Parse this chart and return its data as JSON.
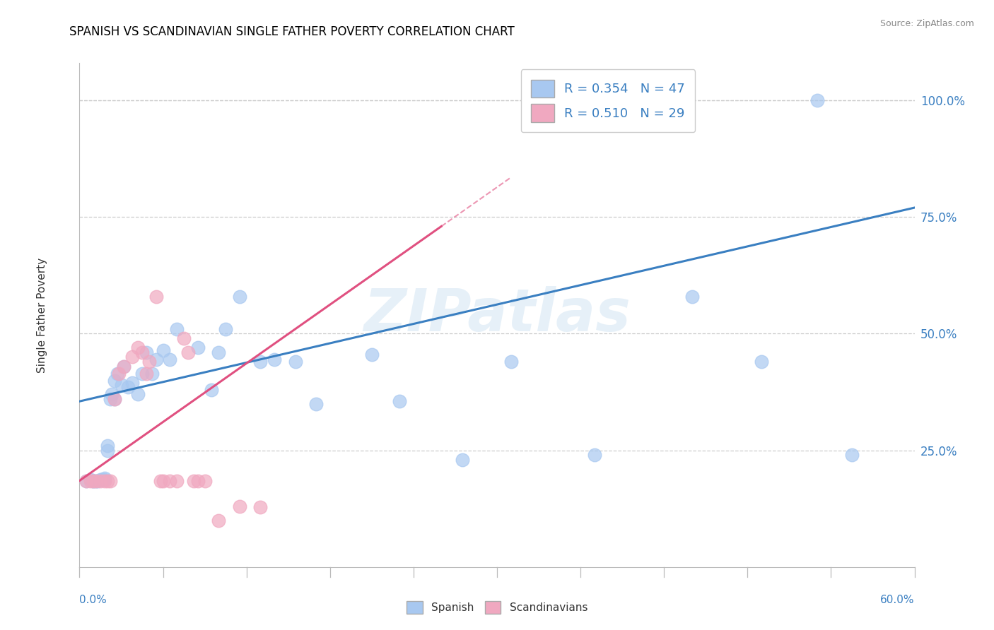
{
  "title": "SPANISH VS SCANDINAVIAN SINGLE FATHER POVERTY CORRELATION CHART",
  "source": "Source: ZipAtlas.com",
  "ylabel": "Single Father Poverty",
  "xlim": [
    0.0,
    0.6
  ],
  "ylim": [
    0.0,
    1.08
  ],
  "right_yticks": [
    0.25,
    0.5,
    0.75,
    1.0
  ],
  "right_yticklabels": [
    "25.0%",
    "50.0%",
    "75.0%",
    "100.0%"
  ],
  "watermark": "ZIPatlas",
  "spanish_color": "#a8c8f0",
  "scandinavian_color": "#f0a8c0",
  "spanish_line_color": "#3a7fc1",
  "scandinavian_line_color": "#e05080",
  "sp_trend_x0": 0.0,
  "sp_trend_y0": 0.355,
  "sp_trend_x1": 0.6,
  "sp_trend_y1": 0.77,
  "sc_trend_x0": 0.0,
  "sc_trend_y0": 0.185,
  "sc_trend_x1": 0.26,
  "sc_trend_y1": 0.73,
  "sp_legend": "R = 0.354   N = 47",
  "sc_legend": "R = 0.510   N = 29",
  "sp_bottom_legend": "Spanish",
  "sc_bottom_legend": "Scandinavians",
  "spanish_x": [
    0.005,
    0.008,
    0.01,
    0.01,
    0.012,
    0.013,
    0.015,
    0.016,
    0.018,
    0.018,
    0.02,
    0.02,
    0.022,
    0.023,
    0.025,
    0.025,
    0.027,
    0.03,
    0.032,
    0.035,
    0.038,
    0.042,
    0.045,
    0.048,
    0.052,
    0.055,
    0.06,
    0.065,
    0.07,
    0.085,
    0.095,
    0.1,
    0.105,
    0.115,
    0.13,
    0.14,
    0.155,
    0.17,
    0.21,
    0.23,
    0.275,
    0.31,
    0.37,
    0.44,
    0.49,
    0.555,
    0.53
  ],
  "spanish_y": [
    0.185,
    0.188,
    0.185,
    0.185,
    0.185,
    0.185,
    0.188,
    0.188,
    0.19,
    0.188,
    0.25,
    0.26,
    0.36,
    0.37,
    0.36,
    0.4,
    0.415,
    0.39,
    0.43,
    0.385,
    0.395,
    0.37,
    0.415,
    0.46,
    0.415,
    0.445,
    0.465,
    0.445,
    0.51,
    0.47,
    0.38,
    0.46,
    0.51,
    0.58,
    0.44,
    0.445,
    0.44,
    0.35,
    0.455,
    0.355,
    0.23,
    0.44,
    0.24,
    0.58,
    0.44,
    0.24,
    1.0
  ],
  "scandinavian_x": [
    0.005,
    0.008,
    0.01,
    0.012,
    0.015,
    0.018,
    0.02,
    0.022,
    0.025,
    0.028,
    0.032,
    0.038,
    0.042,
    0.045,
    0.048,
    0.05,
    0.055,
    0.058,
    0.06,
    0.065,
    0.07,
    0.075,
    0.078,
    0.082,
    0.085,
    0.09,
    0.1,
    0.115,
    0.13
  ],
  "scandinavian_y": [
    0.185,
    0.185,
    0.185,
    0.185,
    0.185,
    0.185,
    0.185,
    0.185,
    0.36,
    0.415,
    0.43,
    0.45,
    0.47,
    0.46,
    0.415,
    0.44,
    0.58,
    0.185,
    0.185,
    0.185,
    0.185,
    0.49,
    0.46,
    0.185,
    0.185,
    0.185,
    0.1,
    0.13,
    0.128
  ]
}
